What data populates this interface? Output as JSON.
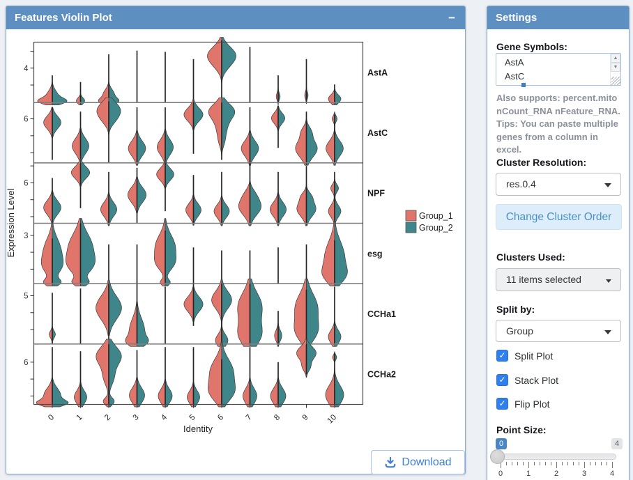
{
  "left_panel": {
    "title": "Features Violin Plot",
    "collapse_icon": "−",
    "download_label": "Download"
  },
  "chart_data": {
    "type": "violin",
    "variant": "split stacked flipped violin (Seurat VlnPlot)",
    "xlabel": "Identity",
    "ylabel": "Expression Level",
    "categories": [
      "0",
      "1",
      "2",
      "3",
      "4",
      "5",
      "6",
      "7",
      "8",
      "9",
      "10"
    ],
    "genes": [
      "AstA",
      "AstC",
      "NPF",
      "esg",
      "CCHa1",
      "CCHa2"
    ],
    "legend_position": "right",
    "groups": [
      {
        "name": "Group_1",
        "color": "#e0756c"
      },
      {
        "name": "Group_2",
        "color": "#3f868b"
      }
    ],
    "facets": [
      {
        "gene": "AstA",
        "ytick": "4",
        "ytick_frac": 0.57,
        "violins": [
          {
            "s": [
              0,
              0.45
            ],
            "b": [
              [
                0.1,
                0.2,
                0.42
              ],
              [
                0.02,
                0.1,
                0.75
              ]
            ]
          },
          {
            "s": [
              0,
              0.34
            ],
            "b": [
              [
                0.03,
                0.1,
                0.3
              ]
            ]
          },
          {
            "s": [
              0,
              0.8
            ],
            "b": [
              [
                0.13,
                0.18,
                0.4
              ],
              [
                0.02,
                0.1,
                0.55
              ]
            ]
          },
          {
            "s": [
              0,
              0.86
            ],
            "b": []
          },
          {
            "s": [
              0,
              0.84
            ],
            "b": []
          },
          {
            "s": [
              0,
              0.72
            ],
            "b": []
          },
          {
            "s": [
              0,
              1.03
            ],
            "b": [
              [
                0.78,
                0.3,
                1.0
              ],
              [
                0.58,
                0.22,
                0.15
              ]
            ]
          },
          {
            "s": [
              0,
              0.92
            ],
            "b": []
          },
          {
            "s": [
              0,
              0.45
            ],
            "b": [
              [
                0.1,
                0.12,
                0.14
              ]
            ]
          },
          {
            "s": [
              0,
              0.72
            ],
            "b": [
              [
                0.12,
                0.12,
                0.12
              ]
            ]
          },
          {
            "s": [
              0,
              0.3
            ],
            "b": [
              [
                0.06,
                0.14,
                0.45
              ]
            ]
          }
        ]
      },
      {
        "gene": "AstC",
        "ytick": "6",
        "ytick_frac": 0.73,
        "violins": [
          {
            "s": [
              0.05,
              0.92
            ],
            "b": [
              [
                0.67,
                0.22,
                0.62
              ]
            ]
          },
          {
            "s": [
              0,
              0.85
            ],
            "b": [
              [
                0.28,
                0.26,
                0.6
              ]
            ]
          },
          {
            "s": [
              0,
              1.02
            ],
            "b": [
              [
                0.88,
                0.26,
                0.8
              ],
              [
                0.7,
                0.2,
                0.25
              ]
            ]
          },
          {
            "s": [
              0,
              0.92
            ],
            "b": [
              [
                0.24,
                0.26,
                0.62
              ]
            ]
          },
          {
            "s": [
              0,
              0.92
            ],
            "b": [
              [
                0.26,
                0.26,
                0.58
              ]
            ]
          },
          {
            "s": [
              0.15,
              1.0
            ],
            "b": [
              [
                0.8,
                0.22,
                0.68
              ]
            ]
          },
          {
            "s": [
              0.05,
              1.0
            ],
            "b": [
              [
                0.86,
                0.26,
                0.85
              ],
              [
                0.58,
                0.34,
                0.36
              ],
              [
                0.34,
                0.18,
                0.1
              ]
            ]
          },
          {
            "s": [
              0,
              0.92
            ],
            "b": [
              [
                0.24,
                0.26,
                0.62
              ]
            ]
          },
          {
            "s": [
              0.25,
              0.95
            ],
            "b": [
              [
                0.74,
                0.18,
                0.48
              ]
            ]
          },
          {
            "s": [
              -0.03,
              0.85
            ],
            "b": [
              [
                0.24,
                0.3,
                0.78
              ],
              [
                0.52,
                0.18,
                0.28
              ]
            ]
          },
          {
            "s": [
              0,
              0.8
            ],
            "b": [
              [
                0.24,
                0.26,
                0.62
              ],
              [
                0.73,
                0.1,
                0.18
              ]
            ]
          }
        ]
      },
      {
        "gene": "NPF",
        "ytick": "6",
        "ytick_frac": 0.67,
        "violins": [
          {
            "s": [
              0,
              0.75
            ],
            "b": [
              [
                0.26,
                0.24,
                0.62
              ]
            ]
          },
          {
            "s": [
              0.25,
              1.0
            ],
            "b": [
              [
                0.84,
                0.2,
                0.66
              ]
            ]
          },
          {
            "s": [
              0,
              0.85
            ],
            "b": [
              [
                0.23,
                0.24,
                0.58
              ]
            ]
          },
          {
            "s": [
              0,
              0.92
            ],
            "b": [
              [
                0.47,
                0.26,
                0.66
              ]
            ]
          },
          {
            "s": [
              0.2,
              1.0
            ],
            "b": [
              [
                0.81,
                0.2,
                0.62
              ]
            ]
          },
          {
            "s": [
              0,
              0.8
            ],
            "b": [
              [
                0.22,
                0.22,
                0.55
              ]
            ]
          },
          {
            "s": [
              0,
              0.85
            ],
            "b": [
              [
                0.2,
                0.22,
                0.55
              ]
            ]
          },
          {
            "s": [
              0,
              1.0
            ],
            "b": [
              [
                0.28,
                0.3,
                0.8
              ],
              [
                0.5,
                0.18,
                0.18
              ]
            ]
          },
          {
            "s": [
              0,
              0.85
            ],
            "b": [
              [
                0.23,
                0.24,
                0.58
              ]
            ]
          },
          {
            "s": [
              0,
              0.95
            ],
            "b": [
              [
                0.24,
                0.26,
                0.68
              ],
              [
                0.45,
                0.15,
                0.25
              ]
            ]
          },
          {
            "s": [
              0,
              0.85
            ],
            "b": [
              [
                0.2,
                0.2,
                0.45
              ],
              [
                0.58,
                0.13,
                0.28
              ]
            ]
          }
        ]
      },
      {
        "gene": "esg",
        "ytick": "3",
        "ytick_frac": 0.8,
        "violins": [
          {
            "s": [
              0,
              0.75
            ],
            "b": [
              [
                0.55,
                0.42,
                0.6
              ],
              [
                0.28,
                0.28,
                0.48
              ],
              [
                0.02,
                0.12,
                0.55
              ]
            ]
          },
          {
            "s": [
              0,
              1.0
            ],
            "b": [
              [
                0.6,
                0.48,
                0.85
              ],
              [
                0.3,
                0.3,
                0.6
              ],
              [
                0.02,
                0.12,
                0.5
              ]
            ]
          },
          {
            "s": [
              0,
              0.65
            ],
            "b": []
          },
          {
            "s": [
              0,
              0.65
            ],
            "b": []
          },
          {
            "s": [
              0,
              0.88
            ],
            "b": [
              [
                0.6,
                0.42,
                0.72
              ],
              [
                0.33,
                0.24,
                0.4
              ],
              [
                0.02,
                0.1,
                0.35
              ]
            ]
          },
          {
            "s": [
              0,
              0.6
            ],
            "b": []
          },
          {
            "s": [
              0,
              0.55
            ],
            "b": []
          },
          {
            "s": [
              0,
              0.55
            ],
            "b": []
          },
          {
            "s": [
              0,
              0.6
            ],
            "b": []
          },
          {
            "s": [
              0,
              0.65
            ],
            "b": []
          },
          {
            "s": [
              0,
              0.72
            ],
            "b": [
              [
                0.45,
                0.52,
                0.7
              ],
              [
                0.14,
                0.28,
                0.55
              ]
            ]
          }
        ]
      },
      {
        "gene": "CCHa1",
        "ytick": "5",
        "ytick_frac": 0.8,
        "violins": [
          {
            "s": [
              0,
              0.85
            ],
            "b": [
              [
                0.16,
                0.12,
                0.22
              ]
            ]
          },
          {
            "s": [
              0,
              0.92
            ],
            "b": []
          },
          {
            "s": [
              0,
              1.0
            ],
            "b": [
              [
                0.6,
                0.4,
                0.92
              ]
            ]
          },
          {
            "s": [
              0,
              1.0
            ],
            "b": [
              [
                0.22,
                0.42,
                0.55
              ],
              [
                0.04,
                0.15,
                0.45
              ]
            ]
          },
          {
            "s": [
              0,
              0.95
            ],
            "b": []
          },
          {
            "s": [
              0.3,
              1.0
            ],
            "b": [
              [
                0.66,
                0.25,
                0.68
              ]
            ]
          },
          {
            "s": [
              0,
              1.0
            ],
            "b": [
              [
                0.73,
                0.3,
                0.72
              ],
              [
                0.06,
                0.2,
                0.45
              ]
            ]
          },
          {
            "s": [
              0,
              1.0
            ],
            "b": [
              [
                0.62,
                0.48,
                0.85
              ],
              [
                0.15,
                0.38,
                0.75
              ]
            ]
          },
          {
            "s": [
              0,
              0.55
            ],
            "b": [
              [
                0.14,
                0.18,
                0.26
              ]
            ]
          },
          {
            "s": [
              0,
              0.9
            ],
            "b": [
              [
                0.6,
                0.48,
                0.8
              ],
              [
                0.2,
                0.34,
                0.65
              ]
            ]
          },
          {
            "s": [
              0,
              0.95
            ],
            "b": [
              [
                0.12,
                0.22,
                0.45
              ]
            ]
          }
        ]
      },
      {
        "gene": "CCHa2",
        "ytick": "6",
        "ytick_frac": 0.7,
        "violins": [
          {
            "s": [
              0,
              0.95
            ],
            "b": [
              [
                0.15,
                0.25,
                0.6
              ],
              [
                0.02,
                0.1,
                0.8
              ]
            ]
          },
          {
            "s": [
              0,
              0.88
            ],
            "b": [
              [
                0.12,
                0.22,
                0.45
              ]
            ]
          },
          {
            "s": [
              0,
              1.0
            ],
            "b": [
              [
                0.8,
                0.32,
                0.9
              ],
              [
                0.45,
                0.28,
                0.35
              ],
              [
                0.05,
                0.12,
                0.4
              ]
            ]
          },
          {
            "s": [
              0,
              0.9
            ],
            "b": [
              [
                0.15,
                0.26,
                0.55
              ]
            ]
          },
          {
            "s": [
              0,
              0.95
            ],
            "b": [
              [
                0.14,
                0.24,
                0.5
              ]
            ]
          },
          {
            "s": [
              0,
              0.95
            ],
            "b": [
              [
                0.12,
                0.22,
                0.45
              ]
            ]
          },
          {
            "s": [
              0,
              0.75
            ],
            "b": [
              [
                0.55,
                0.42,
                0.8
              ],
              [
                0.2,
                0.32,
                0.75
              ]
            ]
          },
          {
            "s": [
              0,
              0.95
            ],
            "b": [
              [
                0.14,
                0.26,
                0.5
              ]
            ]
          },
          {
            "s": [
              0,
              0.7
            ],
            "b": [
              [
                0.14,
                0.26,
                0.55
              ]
            ]
          },
          {
            "s": [
              0.5,
              1.0
            ],
            "b": [
              [
                0.85,
                0.22,
                0.7
              ],
              [
                0.62,
                0.15,
                0.25
              ]
            ]
          },
          {
            "s": [
              0,
              0.85
            ],
            "b": [
              [
                0.16,
                0.32,
                0.65
              ],
              [
                0.78,
                0.08,
                0.15
              ]
            ]
          }
        ]
      }
    ]
  },
  "settings": {
    "title": "Settings",
    "gene_symbols_label": "Gene Symbols:",
    "gene_symbols_value": "AstA\nAstC",
    "helper_text": "Also supports: percent.mito nCount_RNA nFeature_RNA. Tips: You can paste multiple genes from a column in excel.",
    "cluster_resolution_label": "Cluster Resolution:",
    "cluster_resolution_value": "res.0.4",
    "change_order_button": "Change Cluster Order",
    "clusters_used_label": "Clusters Used:",
    "clusters_used_value": "11 items selected",
    "split_by_label": "Split by:",
    "split_by_value": "Group",
    "checkboxes": [
      {
        "label": "Split Plot",
        "checked": true
      },
      {
        "label": "Stack Plot",
        "checked": true
      },
      {
        "label": "Flip Plot",
        "checked": true
      }
    ],
    "point_size_label": "Point Size:",
    "point_size": {
      "value": "0",
      "max": "4",
      "tick_labels": [
        "0",
        "1",
        "2",
        "3",
        "4"
      ]
    }
  },
  "colors": {
    "header_blue": "#5d8fc0",
    "violin_red": "#e0756c",
    "violin_teal": "#3f868b",
    "checkbox_blue": "#2f80ed"
  }
}
